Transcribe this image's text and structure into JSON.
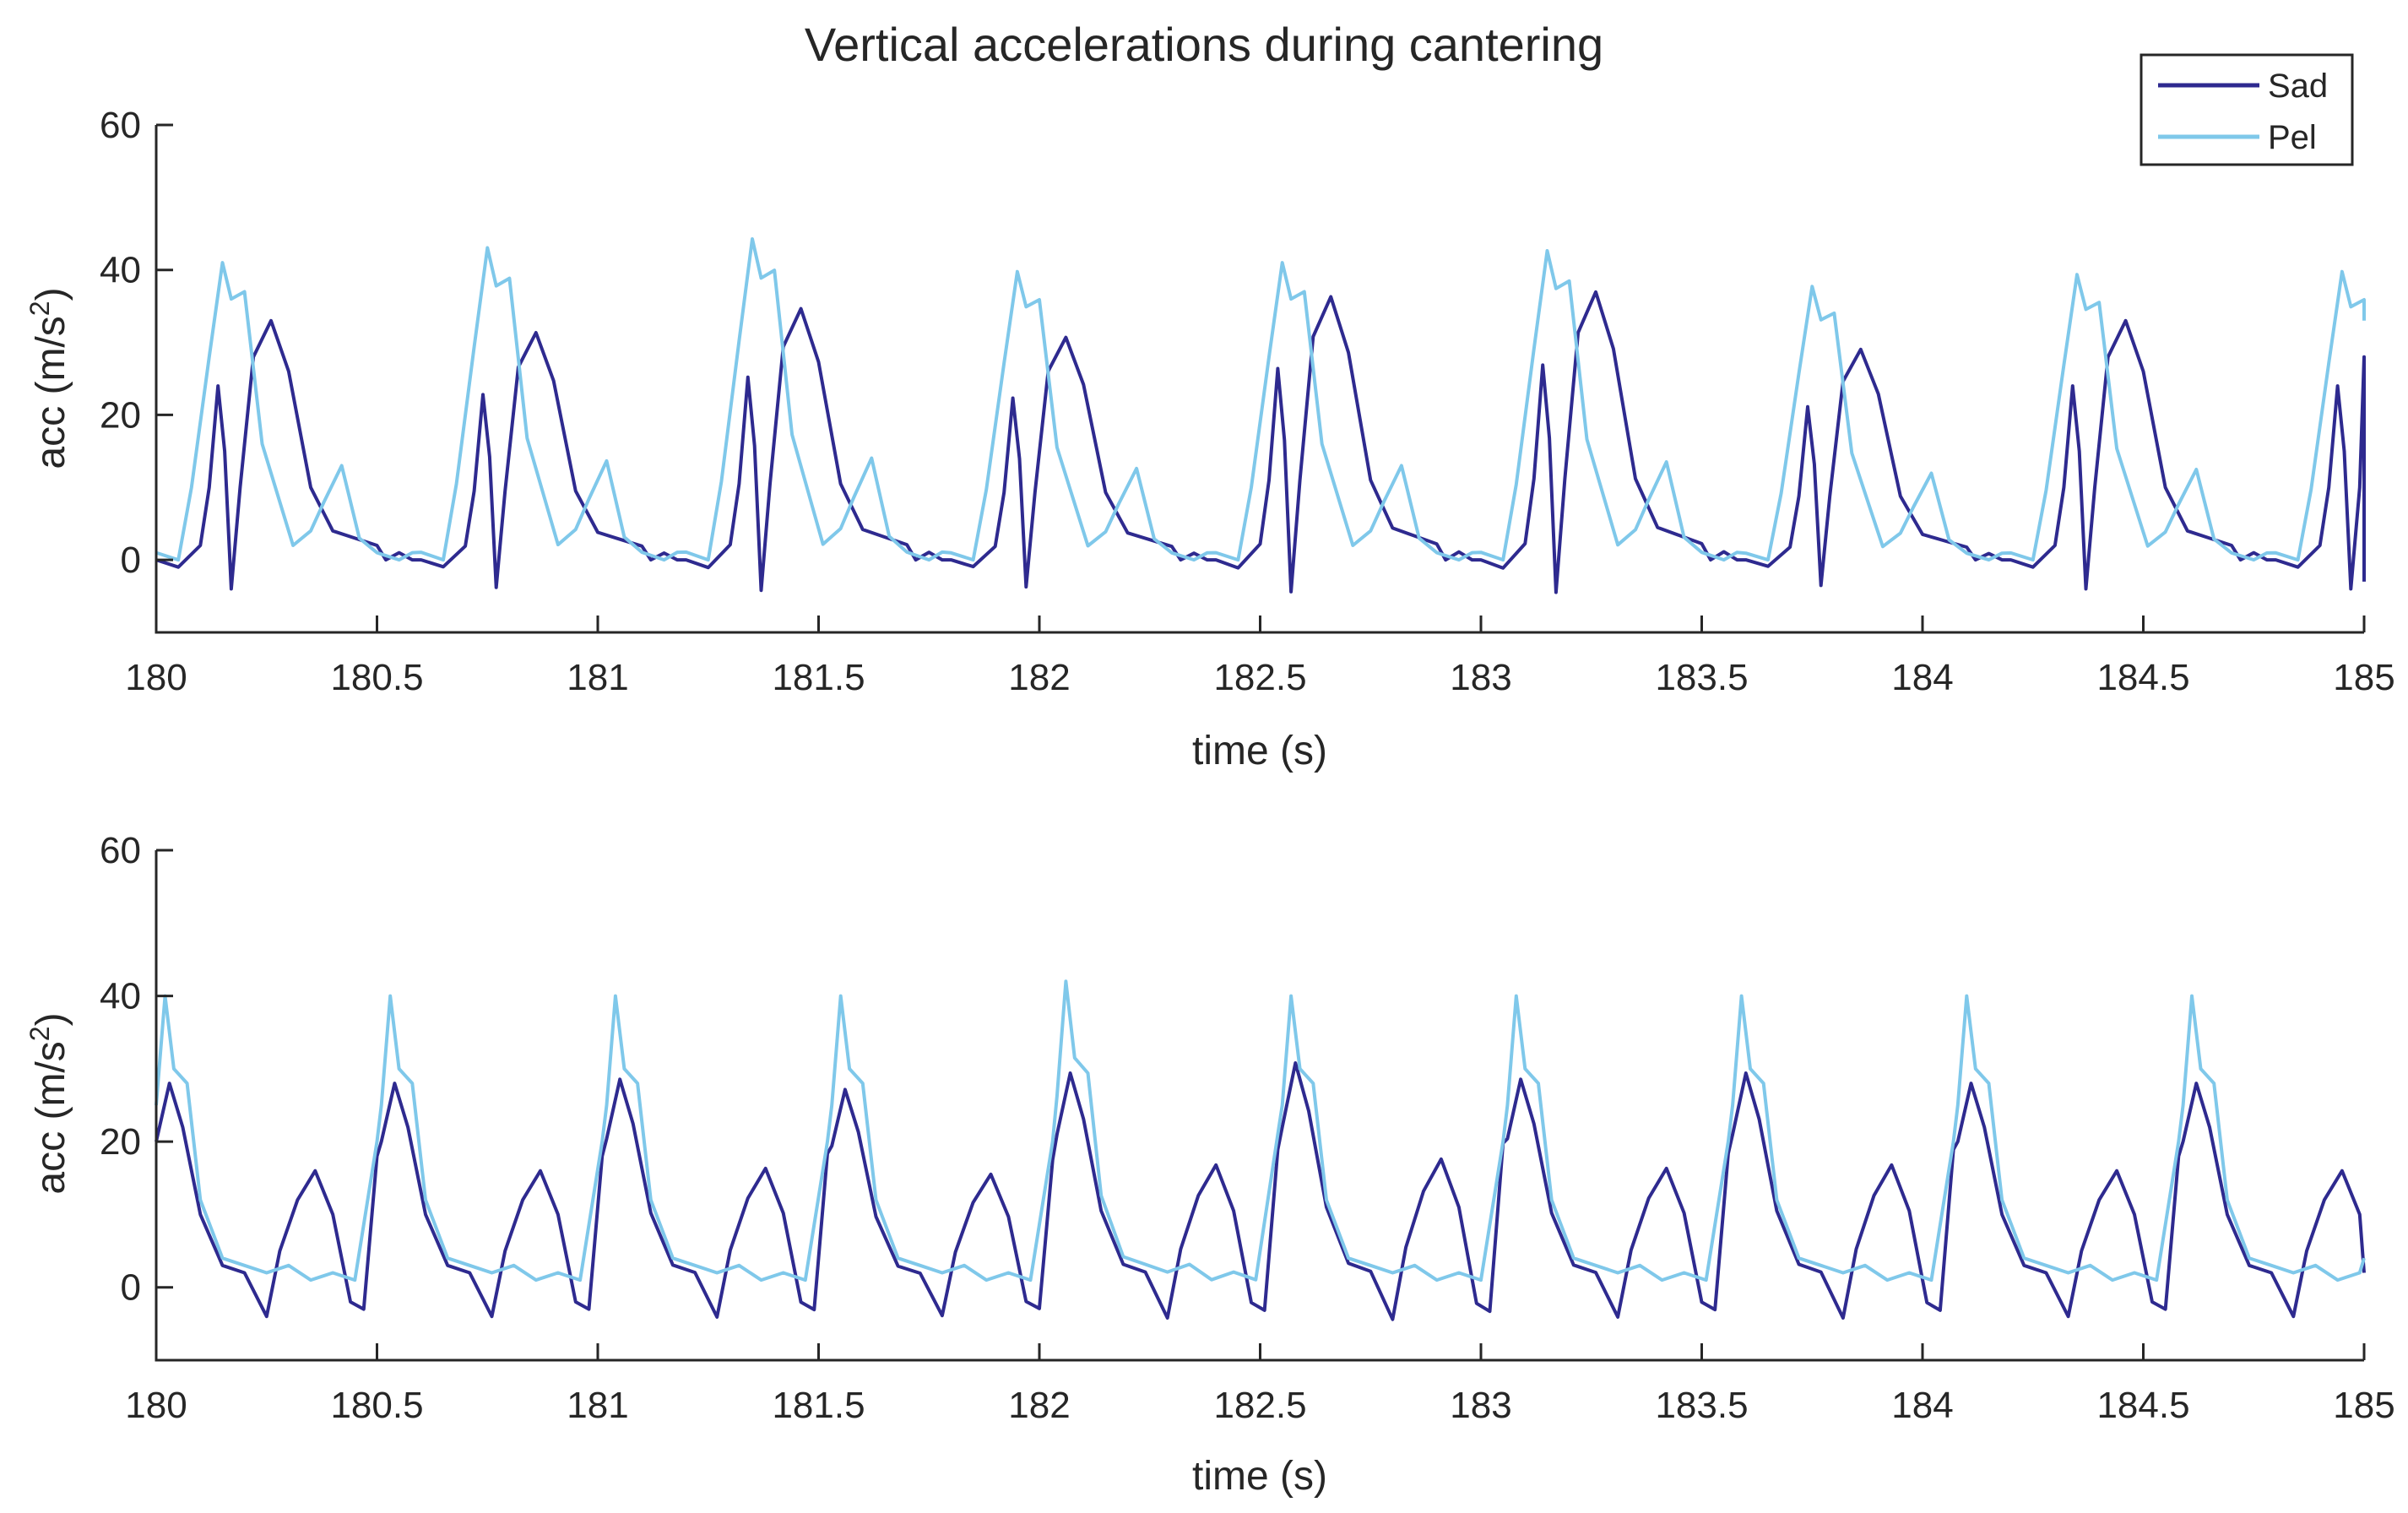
{
  "title": "Vertical accelerations during cantering",
  "legend": {
    "position": "top-right",
    "entries": [
      {
        "name": "Sad",
        "color": "#2e2a8f"
      },
      {
        "name": "Pel",
        "color": "#7fc8ea"
      }
    ]
  },
  "chart_data": [
    {
      "type": "line",
      "xlabel": "time (s)",
      "ylabel_main": "acc (m/s",
      "ylabel_sup": "2",
      "ylabel_end": ")",
      "xlim": [
        180,
        185
      ],
      "ylim": [
        -10,
        60
      ],
      "xticks": [
        180,
        180.5,
        181,
        181.5,
        182,
        182.5,
        183,
        183.5,
        184,
        184.5,
        185
      ],
      "xtick_labels": [
        "180",
        "180.5",
        "181",
        "181.5",
        "182",
        "182.5",
        "183",
        "183.5",
        "184",
        "184.5",
        "185"
      ],
      "yticks": [
        0,
        20,
        40,
        60
      ],
      "ytick_labels": [
        "0",
        "20",
        "40",
        "60"
      ],
      "series": [
        {
          "name": "Sad",
          "color": "#2e2a8f",
          "cycle_start": 180.0,
          "period": 0.6,
          "cycles": 9,
          "end_value": -3,
          "pattern": [
            [
              0,
              0
            ],
            [
              0.05,
              -1
            ],
            [
              0.1,
              2
            ],
            [
              0.12,
              10
            ],
            [
              0.14,
              24
            ],
            [
              0.155,
              15
            ],
            [
              0.17,
              -4
            ],
            [
              0.19,
              10
            ],
            [
              0.22,
              28
            ],
            [
              0.26,
              33
            ],
            [
              0.3,
              26
            ],
            [
              0.35,
              10
            ],
            [
              0.4,
              4
            ],
            [
              0.45,
              3
            ],
            [
              0.5,
              2
            ],
            [
              0.52,
              0
            ],
            [
              0.55,
              1
            ],
            [
              0.58,
              0
            ]
          ],
          "amp": [
            1.0,
            0.95,
            1.05,
            0.93,
            1.1,
            1.12,
            0.88,
            1.0,
            1.0
          ],
          "tail": [
            [
              185.0,
              28
            ],
            [
              185.0,
              -3
            ]
          ]
        },
        {
          "name": "Pel",
          "color": "#7fc8ea",
          "cycle_start": 180.0,
          "period": 0.6,
          "cycles": 9,
          "end_value": 33,
          "pattern": [
            [
              0,
              1
            ],
            [
              0.05,
              0
            ],
            [
              0.08,
              10
            ],
            [
              0.12,
              28
            ],
            [
              0.15,
              41
            ],
            [
              0.17,
              36
            ],
            [
              0.2,
              37
            ],
            [
              0.24,
              16
            ],
            [
              0.28,
              8
            ],
            [
              0.31,
              2
            ],
            [
              0.35,
              4
            ],
            [
              0.38,
              8
            ],
            [
              0.42,
              13
            ],
            [
              0.46,
              3
            ],
            [
              0.5,
              1
            ],
            [
              0.55,
              0
            ],
            [
              0.58,
              1
            ]
          ],
          "amp": [
            1.0,
            1.05,
            1.08,
            0.97,
            1.0,
            1.04,
            0.92,
            0.96,
            0.97
          ]
        }
      ]
    },
    {
      "type": "line",
      "xlabel": "time (s)",
      "ylabel_main": "acc (m/s",
      "ylabel_sup": "2",
      "ylabel_end": ")",
      "xlim": [
        180,
        185
      ],
      "ylim": [
        -10,
        60
      ],
      "xticks": [
        180,
        180.5,
        181,
        181.5,
        182,
        182.5,
        183,
        183.5,
        184,
        184.5,
        185
      ],
      "xtick_labels": [
        "180",
        "180.5",
        "181",
        "181.5",
        "182",
        "182.5",
        "183",
        "183.5",
        "184",
        "184.5",
        "185"
      ],
      "yticks": [
        0,
        20,
        40,
        60
      ],
      "ytick_labels": [
        "0",
        "20",
        "40",
        "60"
      ],
      "series": [
        {
          "name": "Sad",
          "color": "#2e2a8f",
          "cycle_start": 180.0,
          "period": 0.51,
          "cycles": 10,
          "end_value": 2,
          "pattern": [
            [
              0,
              20
            ],
            [
              0.03,
              28
            ],
            [
              0.06,
              22
            ],
            [
              0.1,
              10
            ],
            [
              0.15,
              3
            ],
            [
              0.2,
              2
            ],
            [
              0.25,
              -4
            ],
            [
              0.28,
              5
            ],
            [
              0.32,
              12
            ],
            [
              0.36,
              16
            ],
            [
              0.4,
              10
            ],
            [
              0.44,
              -2
            ],
            [
              0.47,
              -3
            ],
            [
              0.5,
              18
            ]
          ],
          "amp": [
            1.0,
            1.0,
            1.02,
            0.97,
            1.05,
            1.1,
            1.02,
            1.05,
            1.0,
            1.0
          ]
        },
        {
          "name": "Pel",
          "color": "#7fc8ea",
          "cycle_start": 180.0,
          "period": 0.51,
          "cycles": 10,
          "end_value": 4,
          "pattern": [
            [
              0,
              25
            ],
            [
              0.02,
              40
            ],
            [
              0.04,
              30
            ],
            [
              0.07,
              28
            ],
            [
              0.1,
              12
            ],
            [
              0.15,
              4
            ],
            [
              0.2,
              3
            ],
            [
              0.25,
              2
            ],
            [
              0.3,
              3
            ],
            [
              0.35,
              1
            ],
            [
              0.4,
              2
            ],
            [
              0.45,
              1
            ],
            [
              0.5,
              20
            ]
          ],
          "amp": [
            1.0,
            1.0,
            1.0,
            1.0,
            1.05,
            1.0,
            1.0,
            1.0,
            1.0,
            1.0
          ]
        }
      ]
    }
  ]
}
